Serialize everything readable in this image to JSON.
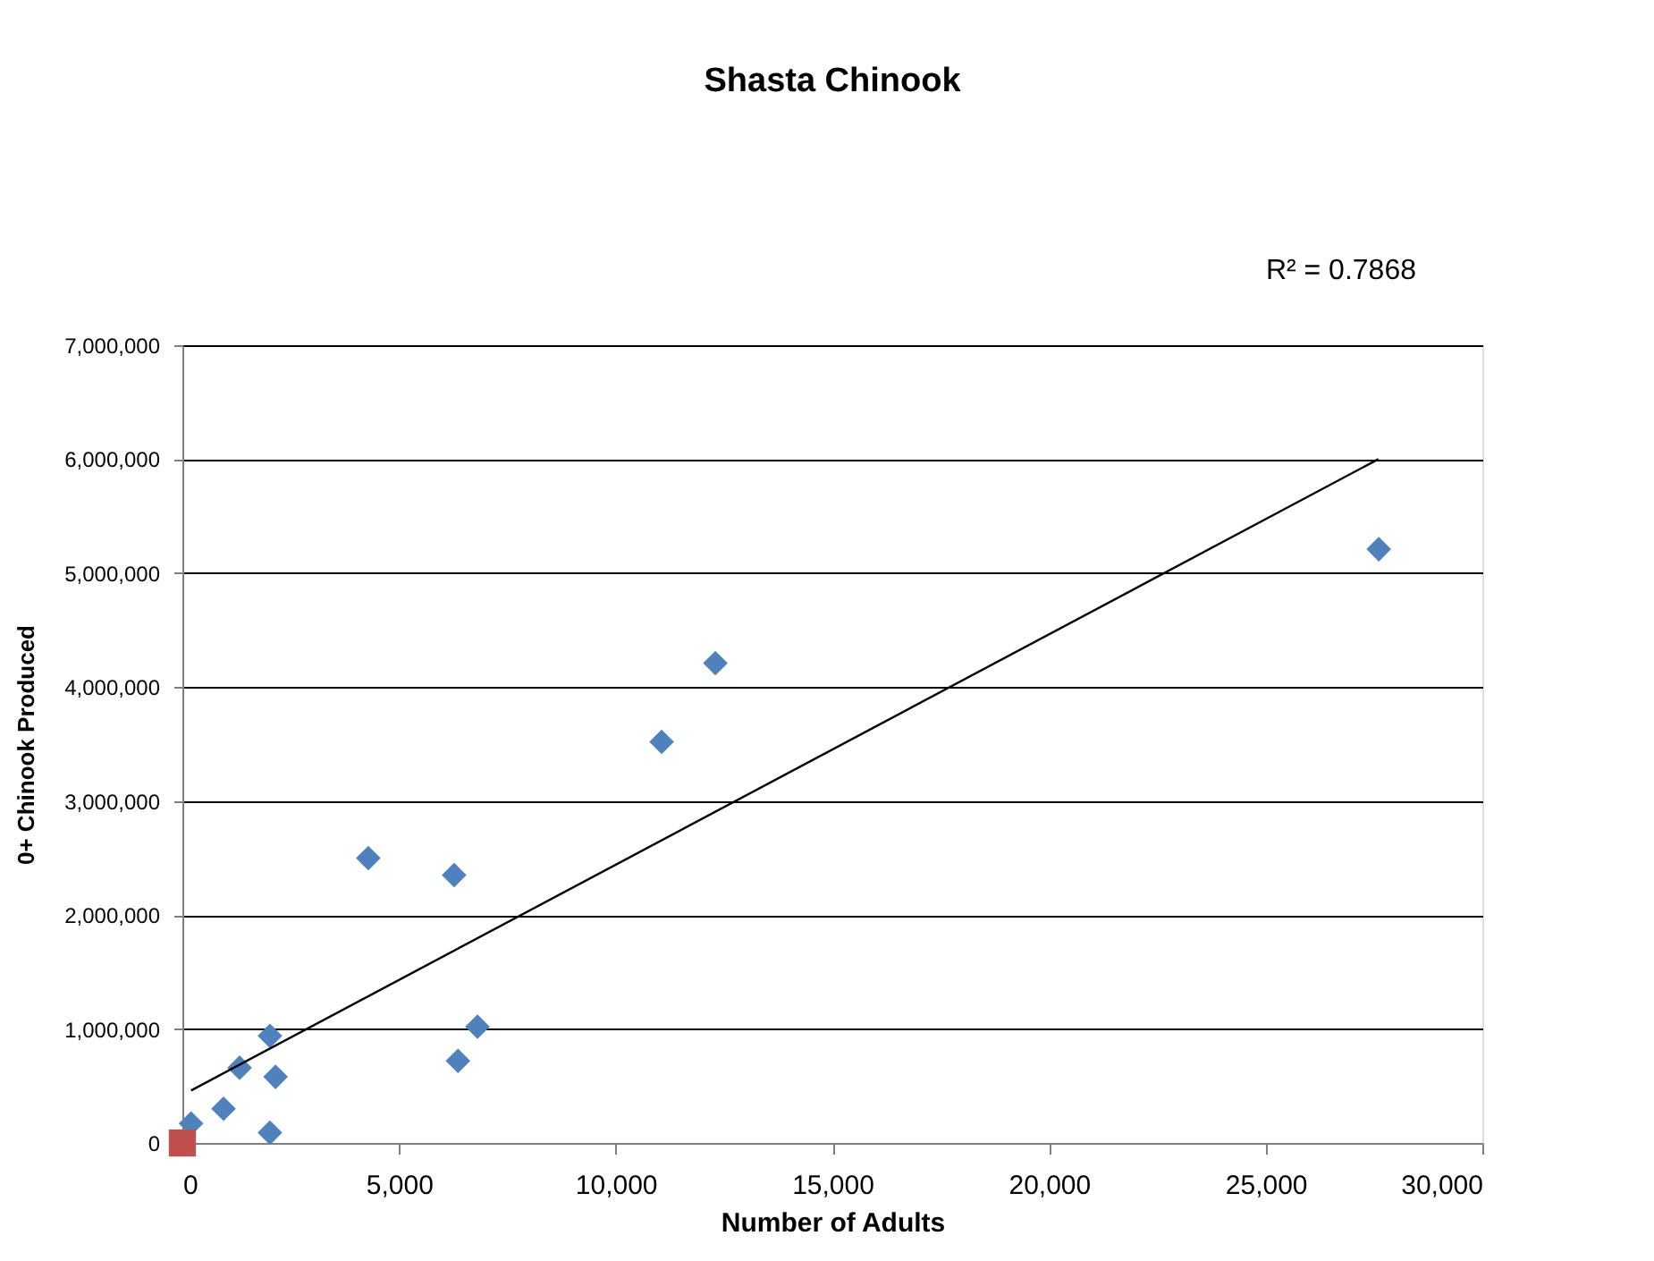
{
  "chart_data": {
    "type": "scatter",
    "title": "Shasta Chinook",
    "xlabel": "Number of Adults",
    "ylabel": "0+ Chinook Produced",
    "series": [
      {
        "marker": "diamond",
        "color": "#4f81bd",
        "x": [
          200,
          950,
          1320,
          2020,
          2150,
          2020,
          4290,
          6270,
          6360,
          6810,
          11060,
          12300,
          27610
        ],
        "values": [
          170000,
          300000,
          660000,
          940000,
          580000,
          90000,
          2500000,
          2350000,
          720000,
          1020000,
          3520000,
          4210000,
          5210000
        ]
      },
      {
        "marker": "square",
        "color": "#c0504d",
        "x": [
          0
        ],
        "values": [
          0
        ]
      },
      {
        "type": "line",
        "marker": "none",
        "color": "#000000",
        "x": [
          200,
          27600
        ],
        "values": [
          460000,
          6000000
        ]
      }
    ],
    "xlim": [
      0,
      30000
    ],
    "xticks": [
      0,
      {
        "value": 5000,
        "label": "5,000"
      },
      {
        "value": 10000,
        "label": "10,000"
      },
      {
        "value": 15000,
        "label": "15,000"
      },
      {
        "value": 20000,
        "label": "20,000"
      },
      {
        "value": 25000,
        "label": "25,000"
      },
      {
        "value": 30000,
        "label": "30,000"
      }
    ],
    "ylim": [
      0,
      7000000
    ],
    "yticks": [
      0,
      {
        "value": 1000000,
        "label": "1,000,000"
      },
      {
        "value": 2000000,
        "label": "2,000,000"
      },
      {
        "value": 3000000,
        "label": "3,000,000"
      },
      {
        "value": 4000000,
        "label": "4,000,000"
      },
      {
        "value": 5000000,
        "label": "5,000,000"
      },
      {
        "value": 6000000,
        "label": "6,000,000"
      },
      {
        "value": 7000000,
        "label": "7,000,000"
      }
    ],
    "grid": "y",
    "annotations": [
      "R² = 0.7868"
    ]
  }
}
